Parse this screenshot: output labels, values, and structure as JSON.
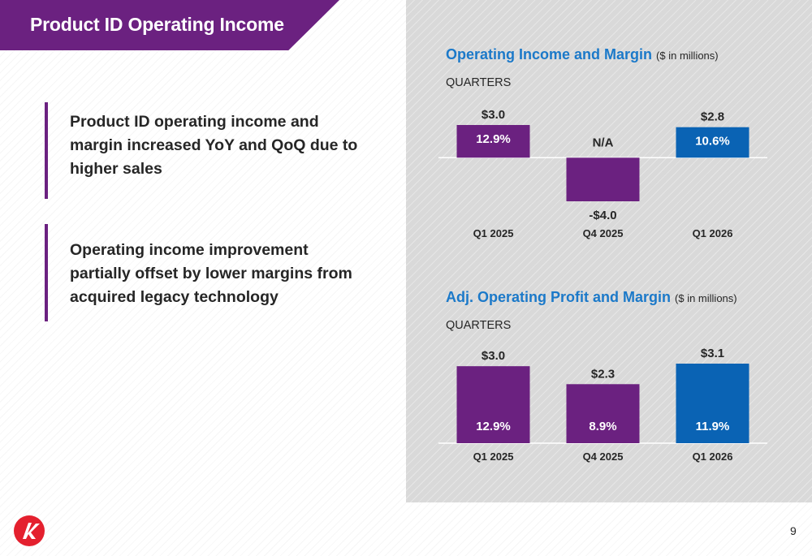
{
  "slide": {
    "title": "Product ID Operating Income",
    "page_number": "9",
    "colors": {
      "purple": "#6b2180",
      "blue": "#0a63b4",
      "title_blue": "#1b79c9"
    }
  },
  "bullets": [
    "Product ID operating income and margin increased YoY and QoQ due to higher sales",
    "Operating income improvement partially offset by lower margins from acquired legacy technology"
  ],
  "chart1": {
    "title": "Operating Income and Margin",
    "unit": "($ in millions)",
    "period": "QUARTERS"
  },
  "chart2": {
    "title": "Adj. Operating Profit and Margin",
    "unit": "($ in millions)",
    "period": "QUARTERS"
  },
  "chart_data": [
    {
      "type": "bar",
      "title": "Operating Income and Margin",
      "subtitle": "($ in millions)",
      "categories": [
        "Q1 2025",
        "Q4 2025",
        "Q1 2026"
      ],
      "values": [
        3.0,
        -4.0,
        2.8
      ],
      "value_labels": [
        "$3.0",
        "-$4.0",
        "$2.8"
      ],
      "margin_labels": [
        "12.9%",
        "N/A",
        "10.6%"
      ],
      "bar_colors": [
        "#6b2180",
        "#6b2180",
        "#0a63b4"
      ],
      "ylim": [
        -4.0,
        3.0
      ],
      "grid": false
    },
    {
      "type": "bar",
      "title": "Adj. Operating Profit and Margin",
      "subtitle": "($ in millions)",
      "categories": [
        "Q1 2025",
        "Q4 2025",
        "Q1 2026"
      ],
      "values": [
        3.0,
        2.3,
        3.1
      ],
      "value_labels": [
        "$3.0",
        "$2.3",
        "$3.1"
      ],
      "margin_labels": [
        "12.9%",
        "8.9%",
        "11.9%"
      ],
      "bar_colors": [
        "#6b2180",
        "#6b2180",
        "#0a63b4"
      ],
      "ylim": [
        0,
        3.1
      ],
      "grid": false
    }
  ]
}
